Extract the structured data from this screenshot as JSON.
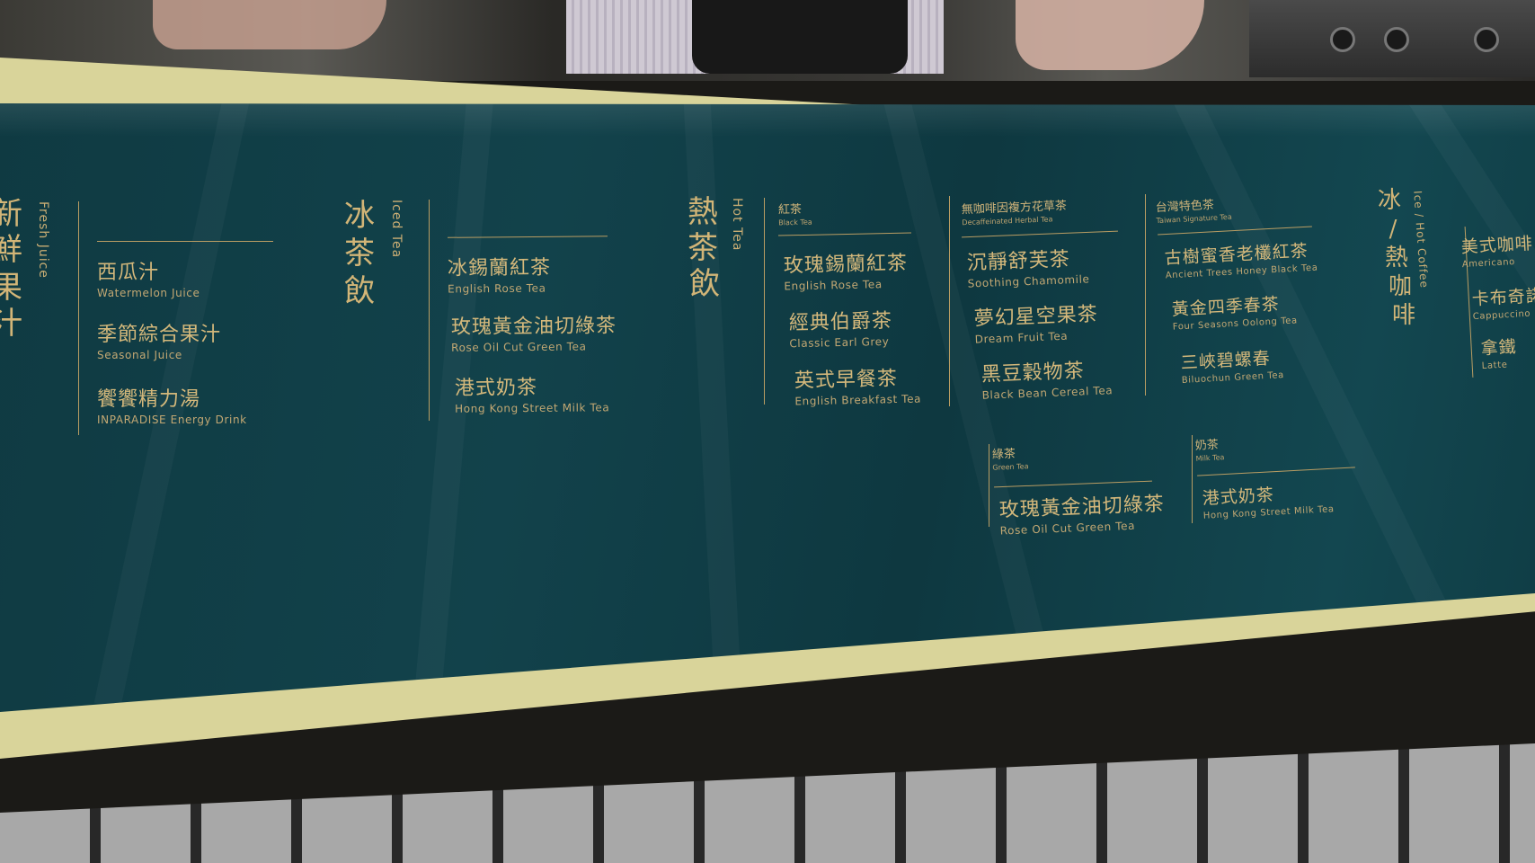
{
  "menu": {
    "fresh_juice": {
      "title_cn": "新鮮果汁",
      "title_cn_visible": [
        "新",
        "鮮",
        "果",
        "汁"
      ],
      "title_en": "Fresh Juice",
      "items": [
        {
          "cn": "西瓜汁",
          "en": "Watermelon Juice"
        },
        {
          "cn": "季節綜合果汁",
          "en": "Seasonal Juice"
        },
        {
          "cn": "饗饗精力湯",
          "en": "INPARADISE Energy Drink"
        }
      ]
    },
    "iced_tea": {
      "title_cn": [
        "冰",
        "茶",
        "飲"
      ],
      "title_en": "Iced Tea",
      "items": [
        {
          "cn": "冰錫蘭紅茶",
          "en": "English Rose Tea"
        },
        {
          "cn": "玫瑰黃金油切綠茶",
          "en": "Rose Oil Cut Green Tea"
        },
        {
          "cn": "港式奶茶",
          "en": "Hong Kong Street Milk Tea"
        }
      ]
    },
    "hot_tea": {
      "title_cn": [
        "熱",
        "茶",
        "飲"
      ],
      "title_en": "Hot Tea",
      "black_tea": {
        "label_cn": "紅茶",
        "label_en": "Black Tea",
        "items": [
          {
            "cn": "玫瑰錫蘭紅茶",
            "en": "English Rose Tea"
          },
          {
            "cn": "經典伯爵茶",
            "en": "Classic Earl Grey"
          },
          {
            "cn": "英式早餐茶",
            "en": "English Breakfast Tea"
          }
        ]
      },
      "herbal_tea": {
        "label_cn": "無咖啡因複方花草茶",
        "label_en": "Decaffeinated Herbal Tea",
        "items": [
          {
            "cn": "沉靜舒芙茶",
            "en": "Soothing Chamomile"
          },
          {
            "cn": "夢幻星空果茶",
            "en": "Dream Fruit Tea"
          },
          {
            "cn": "黑豆穀物茶",
            "en": "Black Bean Cereal Tea"
          }
        ]
      },
      "signature_tea": {
        "label_cn": "台灣特色茶",
        "label_en": "Taiwan Signature Tea",
        "items": [
          {
            "cn": "古樹蜜香老欉紅茶",
            "en": "Ancient Trees Honey Black Tea"
          },
          {
            "cn": "黃金四季春茶",
            "en": "Four Seasons Oolong Tea"
          },
          {
            "cn": "三峽碧螺春",
            "en": "Biluochun Green Tea"
          }
        ]
      },
      "green_tea": {
        "label_cn": "綠茶",
        "label_en": "Green Tea",
        "items": [
          {
            "cn": "玫瑰黃金油切綠茶",
            "en": "Rose Oil Cut Green Tea"
          }
        ]
      },
      "milk_tea": {
        "label_cn": "奶茶",
        "label_en": "Milk Tea",
        "items": [
          {
            "cn": "港式奶茶",
            "en": "Hong Kong Street Milk Tea"
          }
        ]
      }
    },
    "coffee": {
      "title_cn": [
        "冰",
        "/",
        "熱",
        "咖",
        "啡"
      ],
      "title_en": "Ice / Hot Coffee",
      "items": [
        {
          "cn": "美式咖啡",
          "en": "Americano"
        },
        {
          "cn": "卡布奇諾",
          "en": "Cappuccino"
        },
        {
          "cn": "拿鐵",
          "en": "Latte"
        }
      ]
    }
  },
  "colors": {
    "board": "#12424b",
    "gold": "#c9ad74",
    "frame": "#d9d49a"
  }
}
